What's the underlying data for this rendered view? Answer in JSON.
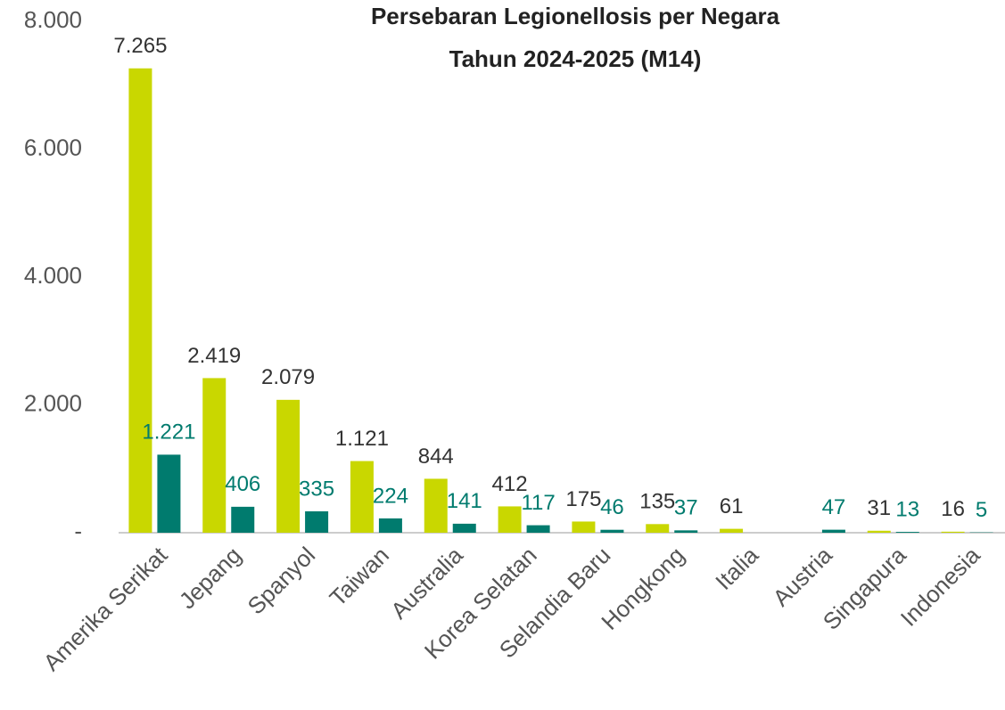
{
  "chart_data": {
    "type": "bar",
    "title": [
      "Persebaran Legionellosis per Negara",
      "Tahun 2024-2025 (M14)"
    ],
    "categories": [
      "Amerika Serikat",
      "Jepang",
      "Spanyol",
      "Taiwan",
      "Australia",
      "Korea Selatan",
      "Selandia Baru",
      "Hongkong",
      "Italia",
      "Austria",
      "Singapura",
      "Indonesia"
    ],
    "series": [
      {
        "color": "#c9d700",
        "values": [
          7265,
          2419,
          2079,
          1121,
          844,
          412,
          175,
          135,
          61,
          null,
          31,
          16
        ],
        "value_labels": [
          "7.265",
          "2.419",
          "2.079",
          "1.121",
          "844",
          "412",
          "175",
          "135",
          "61",
          null,
          "31",
          "16"
        ],
        "label_color": "#333333"
      },
      {
        "color": "#007b6e",
        "values": [
          1221,
          406,
          335,
          224,
          141,
          117,
          46,
          37,
          null,
          47,
          13,
          5
        ],
        "value_labels": [
          "1.221",
          "406",
          "335",
          "224",
          "141",
          "117",
          "46",
          "37",
          null,
          "47",
          "13",
          "5"
        ],
        "label_color": "#007b6e"
      }
    ],
    "ylim": [
      0,
      8000
    ],
    "yticks": [
      {
        "value": 0,
        "label": "-"
      },
      {
        "value": 2000,
        "label": "2.000"
      },
      {
        "value": 4000,
        "label": "4.000"
      },
      {
        "value": 6000,
        "label": "6.000"
      },
      {
        "value": 8000,
        "label": "8.000"
      }
    ],
    "grid": false
  }
}
